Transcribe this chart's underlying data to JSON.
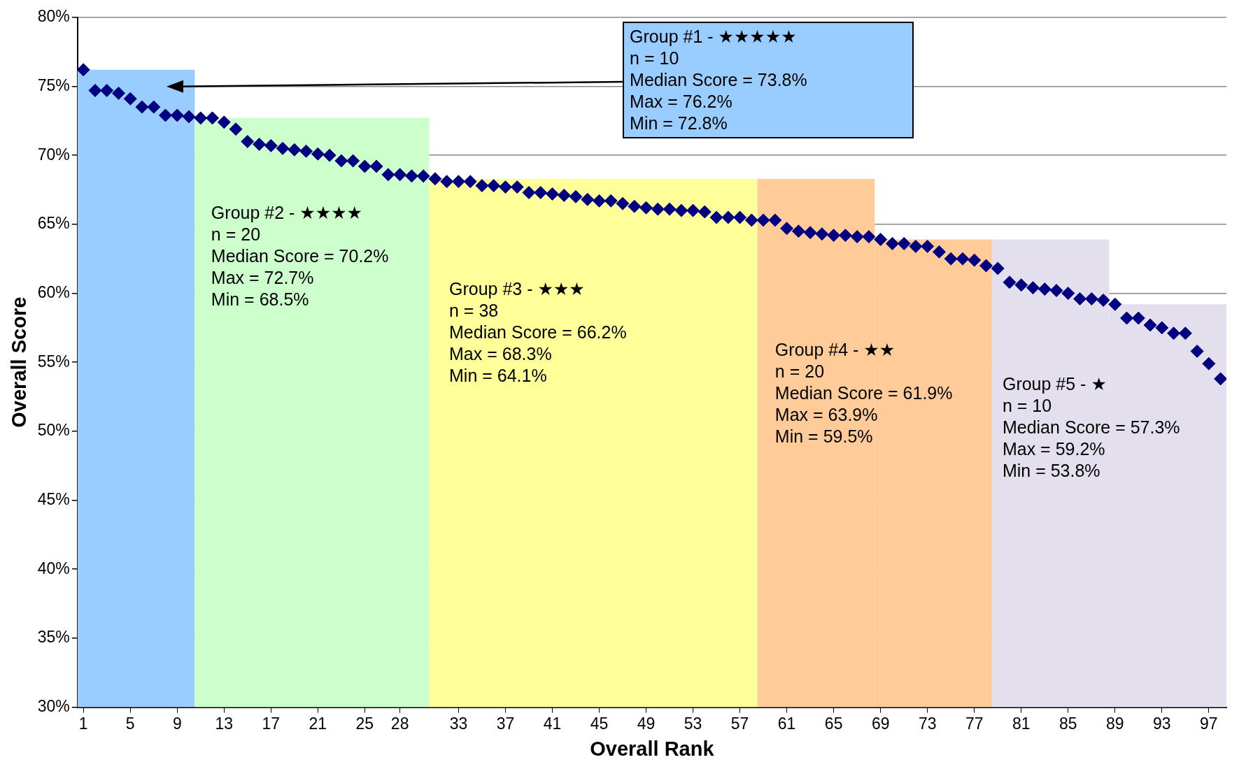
{
  "chart_data": {
    "type": "scatter",
    "xlabel": "Overall Rank",
    "ylabel": "Overall Score",
    "series": [
      {
        "type": "histogram",
        "bins": [
          0.5,
          10.5,
          30.5,
          58.5,
          68.5,
          78.5,
          88.5,
          98.5
        ],
        "values": [
          76.2,
          72.7,
          68.3,
          68.3,
          63.9,
          63.9,
          59.2
        ],
        "colors": [
          "#99ccff",
          "#ccffcc",
          "#ffff99",
          "#ffcc99",
          "#ffcc99",
          "#e3dfed",
          "#e3dfed"
        ]
      },
      {
        "color": "#000080",
        "x": [
          1,
          2,
          3,
          4,
          5,
          6,
          7,
          8,
          9,
          10,
          11,
          12,
          13,
          14,
          15,
          16,
          17,
          18,
          19,
          20,
          21,
          22,
          23,
          24,
          25,
          26,
          27,
          28,
          29,
          30,
          31,
          32,
          33,
          34,
          35,
          36,
          37,
          38,
          39,
          40,
          41,
          42,
          43,
          44,
          45,
          46,
          47,
          48,
          49,
          50,
          51,
          52,
          53,
          54,
          55,
          56,
          57,
          58,
          59,
          60,
          61,
          62,
          63,
          64,
          65,
          66,
          67,
          68,
          69,
          70,
          71,
          72,
          73,
          74,
          75,
          76,
          77,
          78,
          79,
          80,
          81,
          82,
          83,
          84,
          85,
          86,
          87,
          88,
          89,
          90,
          91,
          92,
          93,
          94,
          95,
          96,
          97,
          98
        ],
        "values": [
          76.2,
          74.7,
          74.7,
          74.5,
          74.1,
          73.5,
          73.5,
          72.9,
          72.9,
          72.8,
          72.7,
          72.7,
          72.4,
          71.9,
          71.0,
          70.8,
          70.7,
          70.5,
          70.4,
          70.3,
          70.1,
          70.0,
          69.6,
          69.6,
          69.2,
          69.2,
          68.6,
          68.6,
          68.5,
          68.5,
          68.3,
          68.1,
          68.1,
          68.1,
          67.8,
          67.8,
          67.7,
          67.7,
          67.3,
          67.3,
          67.2,
          67.1,
          67.0,
          66.8,
          66.7,
          66.7,
          66.5,
          66.3,
          66.2,
          66.1,
          66.1,
          66.0,
          66.0,
          65.9,
          65.5,
          65.5,
          65.5,
          65.3,
          65.3,
          65.3,
          64.7,
          64.5,
          64.4,
          64.3,
          64.2,
          64.2,
          64.1,
          64.1,
          63.9,
          63.6,
          63.6,
          63.4,
          63.4,
          63.0,
          62.5,
          62.5,
          62.4,
          62.0,
          61.8,
          60.8,
          60.6,
          60.4,
          60.3,
          60.2,
          60.0,
          59.6,
          59.6,
          59.5,
          59.2,
          58.2,
          58.2,
          57.7,
          57.5,
          57.1,
          57.1,
          55.8,
          54.9,
          53.8
        ]
      }
    ],
    "marker": "diamond",
    "xlim": [
      0.5,
      98.5
    ],
    "xticks": [
      1,
      5,
      9,
      13,
      17,
      21,
      25,
      28,
      33,
      37,
      41,
      45,
      49,
      53,
      57,
      61,
      65,
      69,
      73,
      77,
      81,
      85,
      89,
      93,
      97
    ],
    "ylim": [
      30,
      80
    ],
    "yticks": [
      {
        "value": 30,
        "label": "30%"
      },
      {
        "value": 35,
        "label": "35%"
      },
      {
        "value": 40,
        "label": "40%"
      },
      {
        "value": 45,
        "label": "45%"
      },
      {
        "value": 50,
        "label": "50%"
      },
      {
        "value": 55,
        "label": "55%"
      },
      {
        "value": 60,
        "label": "60%"
      },
      {
        "value": 65,
        "label": "65%"
      },
      {
        "value": 70,
        "label": "70%"
      },
      {
        "value": 75,
        "label": "75%"
      },
      {
        "value": 80,
        "label": "80%"
      }
    ],
    "grid": "y",
    "annotations": [
      "Group #1 - ★★★★★\nn = 10\nMedian Score = 73.8%\nMax = 76.2%\nMin = 72.8%",
      "Group #2 - ★★★★\nn = 20\nMedian Score = 70.2%\nMax = 72.7%\nMin = 68.5%",
      "Group #3 - ★★★\nn = 38\nMedian Score = 66.2%\nMax = 68.3%\nMin = 64.1%",
      "Group #4 - ★★\nn = 20\nMedian Score = 61.9%\nMax = 63.9%\nMin = 59.5%",
      "Group #5 - ★\nn = 10\nMedian Score = 57.3%\nMax = 59.2%\nMin = 53.8%"
    ]
  }
}
